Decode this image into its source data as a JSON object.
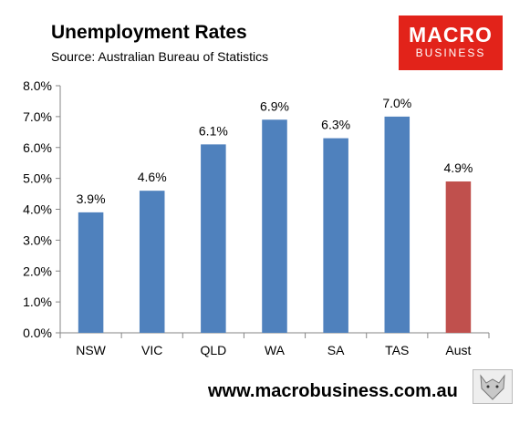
{
  "header": {
    "title": "Unemployment Rates",
    "subtitle": "Source: Australian Bureau of Statistics"
  },
  "logo": {
    "line1": "MACRO",
    "line2": "BUSINESS"
  },
  "footer": {
    "url": "www.macrobusiness.com.au"
  },
  "colors": {
    "bar": "#4f81bd",
    "highlight": "#c0504d",
    "logo": "#e2231a"
  },
  "chart_data": {
    "type": "bar",
    "title": "Unemployment Rates",
    "categories": [
      "NSW",
      "VIC",
      "QLD",
      "WA",
      "SA",
      "TAS",
      "Aust"
    ],
    "values": [
      3.9,
      4.6,
      6.1,
      6.9,
      6.3,
      7.0,
      4.9
    ],
    "data_labels": [
      "3.9%",
      "4.6%",
      "6.1%",
      "6.9%",
      "6.3%",
      "7.0%",
      "4.9%"
    ],
    "highlight_category": "Aust",
    "ylim": [
      0,
      8
    ],
    "y_ticks": [
      "0.0%",
      "1.0%",
      "2.0%",
      "3.0%",
      "4.0%",
      "5.0%",
      "6.0%",
      "7.0%",
      "8.0%"
    ],
    "grid": false,
    "legend": "none"
  }
}
